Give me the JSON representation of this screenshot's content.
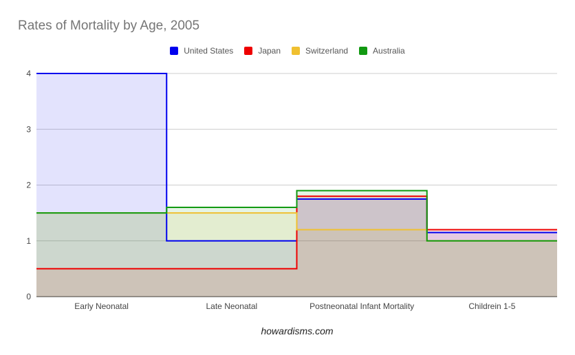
{
  "chart_data": {
    "type": "area",
    "step": true,
    "title": "Rates of Mortality by Age, 2005",
    "xlabel": "howardisms.com",
    "ylabel": "",
    "categories": [
      "Early Neonatal",
      "Late Neonatal",
      "Postneonatal Infant Mortality",
      "Childrein 1-5"
    ],
    "ylim": [
      0,
      4
    ],
    "yticks": [
      0,
      1,
      2,
      3,
      4
    ],
    "grid": true,
    "legend_position": "top",
    "series": [
      {
        "name": "United States",
        "color": "#0000ee",
        "values": [
          4,
          1,
          1.75,
          1.15
        ]
      },
      {
        "name": "Japan",
        "color": "#ee0000",
        "values": [
          0.5,
          0.5,
          1.8,
          1.2
        ]
      },
      {
        "name": "Switzerland",
        "color": "#f0c030",
        "values": [
          1.5,
          1.5,
          1.2,
          1
        ]
      },
      {
        "name": "Australia",
        "color": "#119911",
        "values": [
          1.5,
          1.6,
          1.9,
          1
        ]
      }
    ]
  }
}
